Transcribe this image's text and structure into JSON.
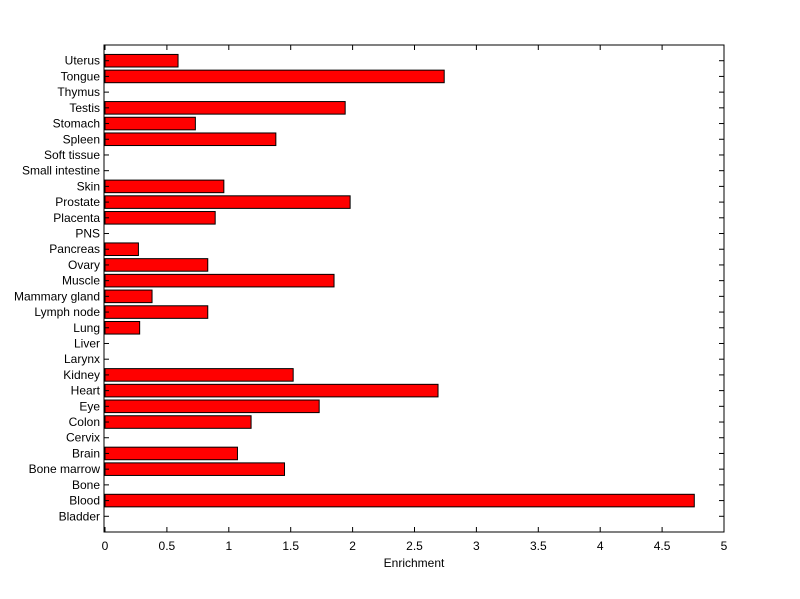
{
  "chart_data": {
    "type": "bar",
    "orientation": "horizontal",
    "xlabel": "Enrichment",
    "ylabel": "",
    "title": "",
    "xlim": [
      0,
      5
    ],
    "xticks": [
      0,
      0.5,
      1,
      1.5,
      2,
      2.5,
      3,
      3.5,
      4,
      4.5,
      5
    ],
    "xtick_labels": [
      "0",
      "0.5",
      "1",
      "1.5",
      "2",
      "2.5",
      "3",
      "3.5",
      "4",
      "4.5",
      "5"
    ],
    "grid": false,
    "bar_color": "#ff0000",
    "categories": [
      "Bladder",
      "Blood",
      "Bone",
      "Bone marrow",
      "Brain",
      "Cervix",
      "Colon",
      "Eye",
      "Heart",
      "Kidney",
      "Larynx",
      "Liver",
      "Lung",
      "Lymph node",
      "Mammary gland",
      "Muscle",
      "Ovary",
      "Pancreas",
      "PNS",
      "Placenta",
      "Prostate",
      "Skin",
      "Small intestine",
      "Soft tissue",
      "Spleen",
      "Stomach",
      "Testis",
      "Thymus",
      "Tongue",
      "Uterus"
    ],
    "values": [
      0,
      4.76,
      0,
      1.45,
      1.07,
      0,
      1.18,
      1.73,
      2.69,
      1.52,
      0,
      0,
      0.28,
      0.83,
      0.38,
      1.85,
      0.83,
      0.27,
      0,
      0.89,
      1.98,
      0.96,
      0,
      0,
      1.38,
      0.73,
      1.94,
      0,
      2.74,
      0.59
    ]
  }
}
